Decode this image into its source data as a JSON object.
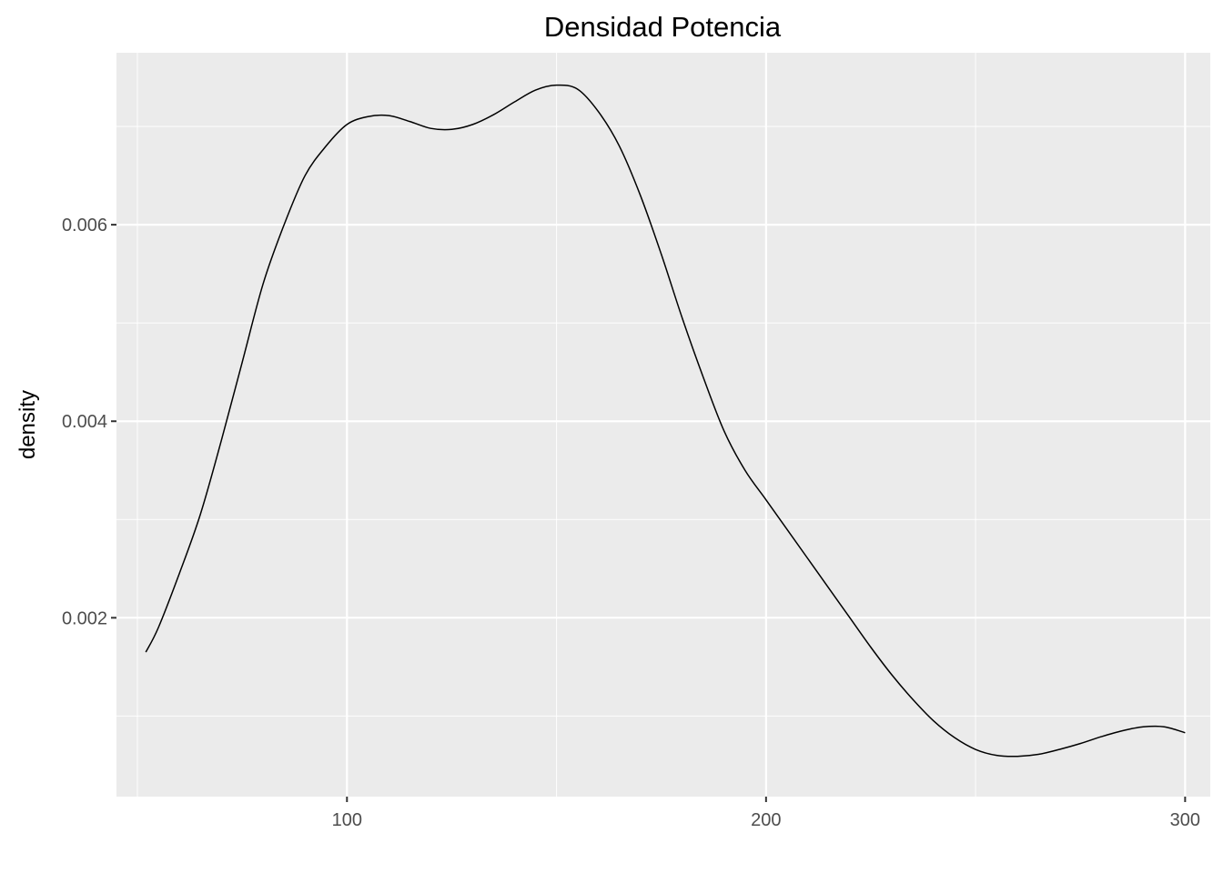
{
  "chart_data": {
    "type": "line",
    "title": "Densidad Potencia",
    "xlabel": "",
    "ylabel": "density",
    "xlim": [
      45,
      306
    ],
    "ylim": [
      0.00018,
      0.00775
    ],
    "xticks": [
      100,
      200,
      300
    ],
    "xtick_labels": [
      "100",
      "200",
      "300"
    ],
    "yticks": [
      0.002,
      0.004,
      0.006
    ],
    "ytick_labels": [
      "0.002",
      "0.004",
      "0.006"
    ],
    "grid": true,
    "legend": "none",
    "colors": {
      "panel": "#ebebeb",
      "grid": "#ffffff",
      "line": "#000000",
      "tick_text": "#4d4d4d"
    },
    "series": [
      {
        "x": [
          52,
          55,
          60,
          65,
          70,
          75,
          80,
          85,
          90,
          95,
          100,
          105,
          110,
          115,
          120,
          125,
          130,
          135,
          140,
          145,
          150,
          155,
          160,
          165,
          170,
          175,
          180,
          185,
          190,
          195,
          200,
          205,
          210,
          215,
          220,
          225,
          230,
          235,
          240,
          245,
          250,
          255,
          260,
          265,
          270,
          275,
          280,
          285,
          290,
          295,
          300
        ],
        "y": [
          0.00165,
          0.0019,
          0.00245,
          0.00305,
          0.0038,
          0.0046,
          0.0054,
          0.006,
          0.0065,
          0.0068,
          0.00702,
          0.0071,
          0.00711,
          0.00705,
          0.00698,
          0.00697,
          0.00702,
          0.00712,
          0.00725,
          0.00737,
          0.00742,
          0.00738,
          0.00715,
          0.0068,
          0.0063,
          0.0057,
          0.00505,
          0.00445,
          0.0039,
          0.0035,
          0.0032,
          0.0029,
          0.0026,
          0.0023,
          0.002,
          0.0017,
          0.00142,
          0.00117,
          0.00095,
          0.00078,
          0.00066,
          0.0006,
          0.00059,
          0.00061,
          0.00066,
          0.00072,
          0.00079,
          0.00085,
          0.00089,
          0.00089,
          0.00083
        ]
      }
    ]
  }
}
